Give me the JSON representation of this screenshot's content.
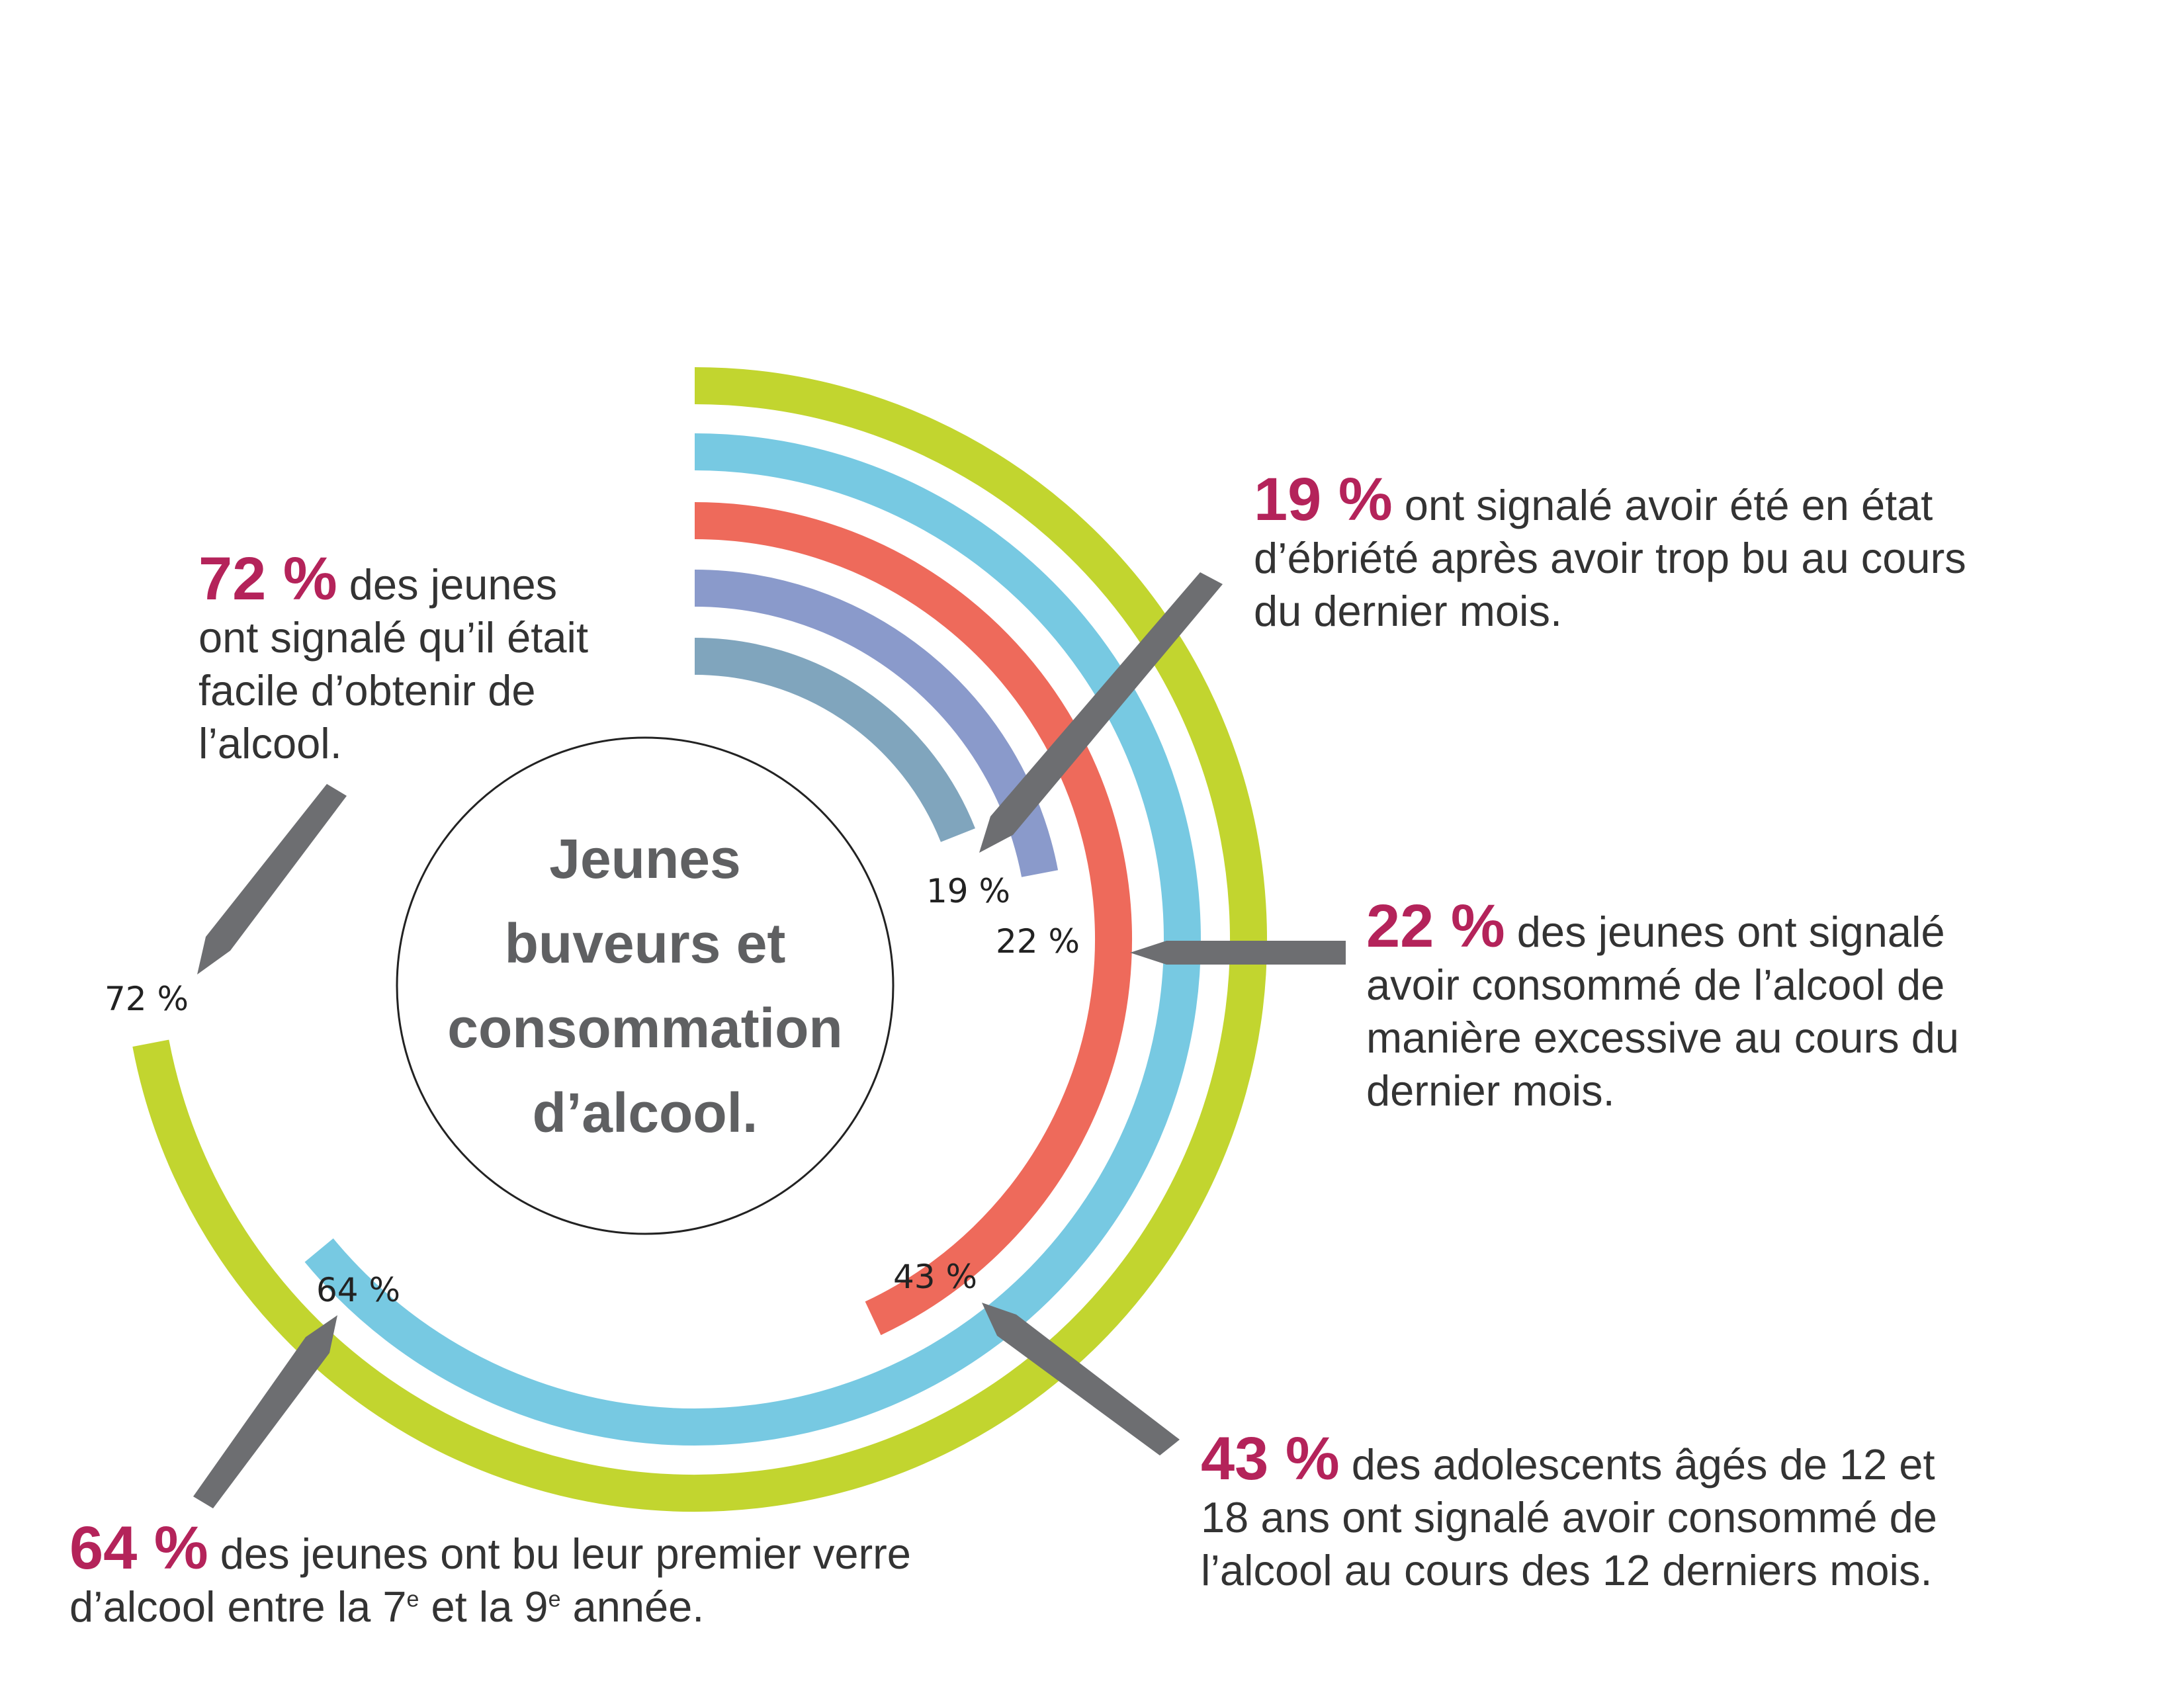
{
  "chart_data": {
    "type": "radial-bar",
    "title": [
      "Jeunes",
      "buveurs et",
      "consommation",
      "d’alcool."
    ],
    "max_value": 100,
    "series": [
      {
        "value": 72,
        "label": "72 %",
        "color": "#c2d52f"
      },
      {
        "value": 64,
        "label": "64 %",
        "color": "#77c9e2"
      },
      {
        "value": 43,
        "label": "43 %",
        "color": "#ee6a5b"
      },
      {
        "value": 22,
        "label": "22 %",
        "color": "#8a9acb"
      },
      {
        "value": 19,
        "label": "19 %",
        "color": "#80a5bd"
      }
    ],
    "annotations": [
      {
        "pct": "72 %",
        "lines": [
          "des jeunes",
          "ont signalé qu’il était",
          "facile d’obtenir de",
          "l’alcool."
        ]
      },
      {
        "pct": "19 %",
        "lines": [
          "ont signalé avoir été en état",
          "d’ébriété après avoir trop bu au cours",
          "du dernier mois."
        ]
      },
      {
        "pct": "22 %",
        "lines": [
          "des jeunes ont signalé",
          "avoir consommé de l’alcool de",
          "manière excessive au cours du",
          "dernier mois."
        ]
      },
      {
        "pct": "43 %",
        "lines": [
          "des adolescents âgés de 12 et",
          "18 ans ont signalé avoir consommé de",
          "l’alcool au cours des 12 derniers mois."
        ]
      },
      {
        "pct": "64 %",
        "line1": "des jeunes ont bu leur premier verre",
        "line2": {
          "pre": "d’alcool entre la 7",
          "sup1": "e",
          "mid": " et la 9",
          "sup2": "e",
          "post": " année."
        }
      }
    ]
  },
  "colors": {
    "accent": "#b4235a",
    "arrow": "#6d6e71",
    "title": "#5f6062"
  }
}
